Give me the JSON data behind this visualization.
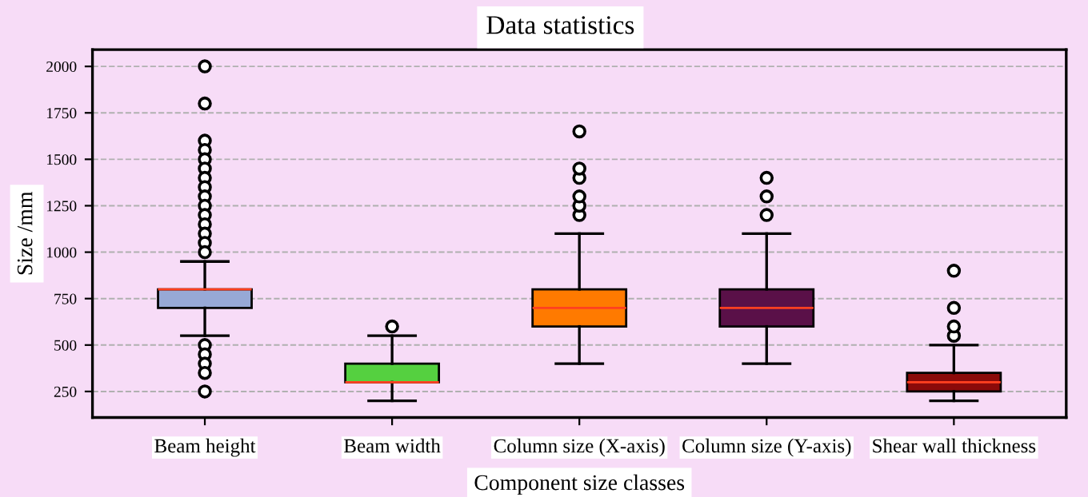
{
  "chart_data": {
    "type": "box",
    "title": "Data statistics",
    "xlabel": "Component size classes",
    "ylabel": "Size /mm",
    "categories": [
      "Beam height",
      "Beam width",
      "Column size (X-axis)",
      "Column size (Y-axis)",
      "Shear wall thickness"
    ],
    "colors": [
      "#97a9d6",
      "#55d040",
      "#ff7a00",
      "#5a1048",
      "#8b0a0a"
    ],
    "boxes": [
      {
        "low": 550,
        "q1": 700,
        "median": 800,
        "q3": 800,
        "high": 950,
        "outliers": [
          2000,
          1800,
          1600,
          1550,
          1500,
          1450,
          1400,
          1350,
          1300,
          1250,
          1200,
          1150,
          1100,
          1050,
          1000,
          500,
          450,
          400,
          350,
          250
        ]
      },
      {
        "low": 200,
        "q1": 300,
        "median": 300,
        "q3": 400,
        "high": 550,
        "outliers": [
          600
        ]
      },
      {
        "low": 400,
        "q1": 600,
        "median": 700,
        "q3": 800,
        "high": 1100,
        "outliers": [
          1200,
          1250,
          1300,
          1400,
          1450,
          1650
        ]
      },
      {
        "low": 400,
        "q1": 600,
        "median": 700,
        "q3": 800,
        "high": 1100,
        "outliers": [
          1200,
          1300,
          1400
        ]
      },
      {
        "low": 200,
        "q1": 250,
        "median": 300,
        "q3": 350,
        "high": 500,
        "outliers": [
          550,
          600,
          700,
          900
        ]
      }
    ],
    "ylim": [
      110,
      2090
    ],
    "yticks": [
      250,
      500,
      750,
      1000,
      1250,
      1500,
      1750,
      2000
    ],
    "grid": "y"
  }
}
